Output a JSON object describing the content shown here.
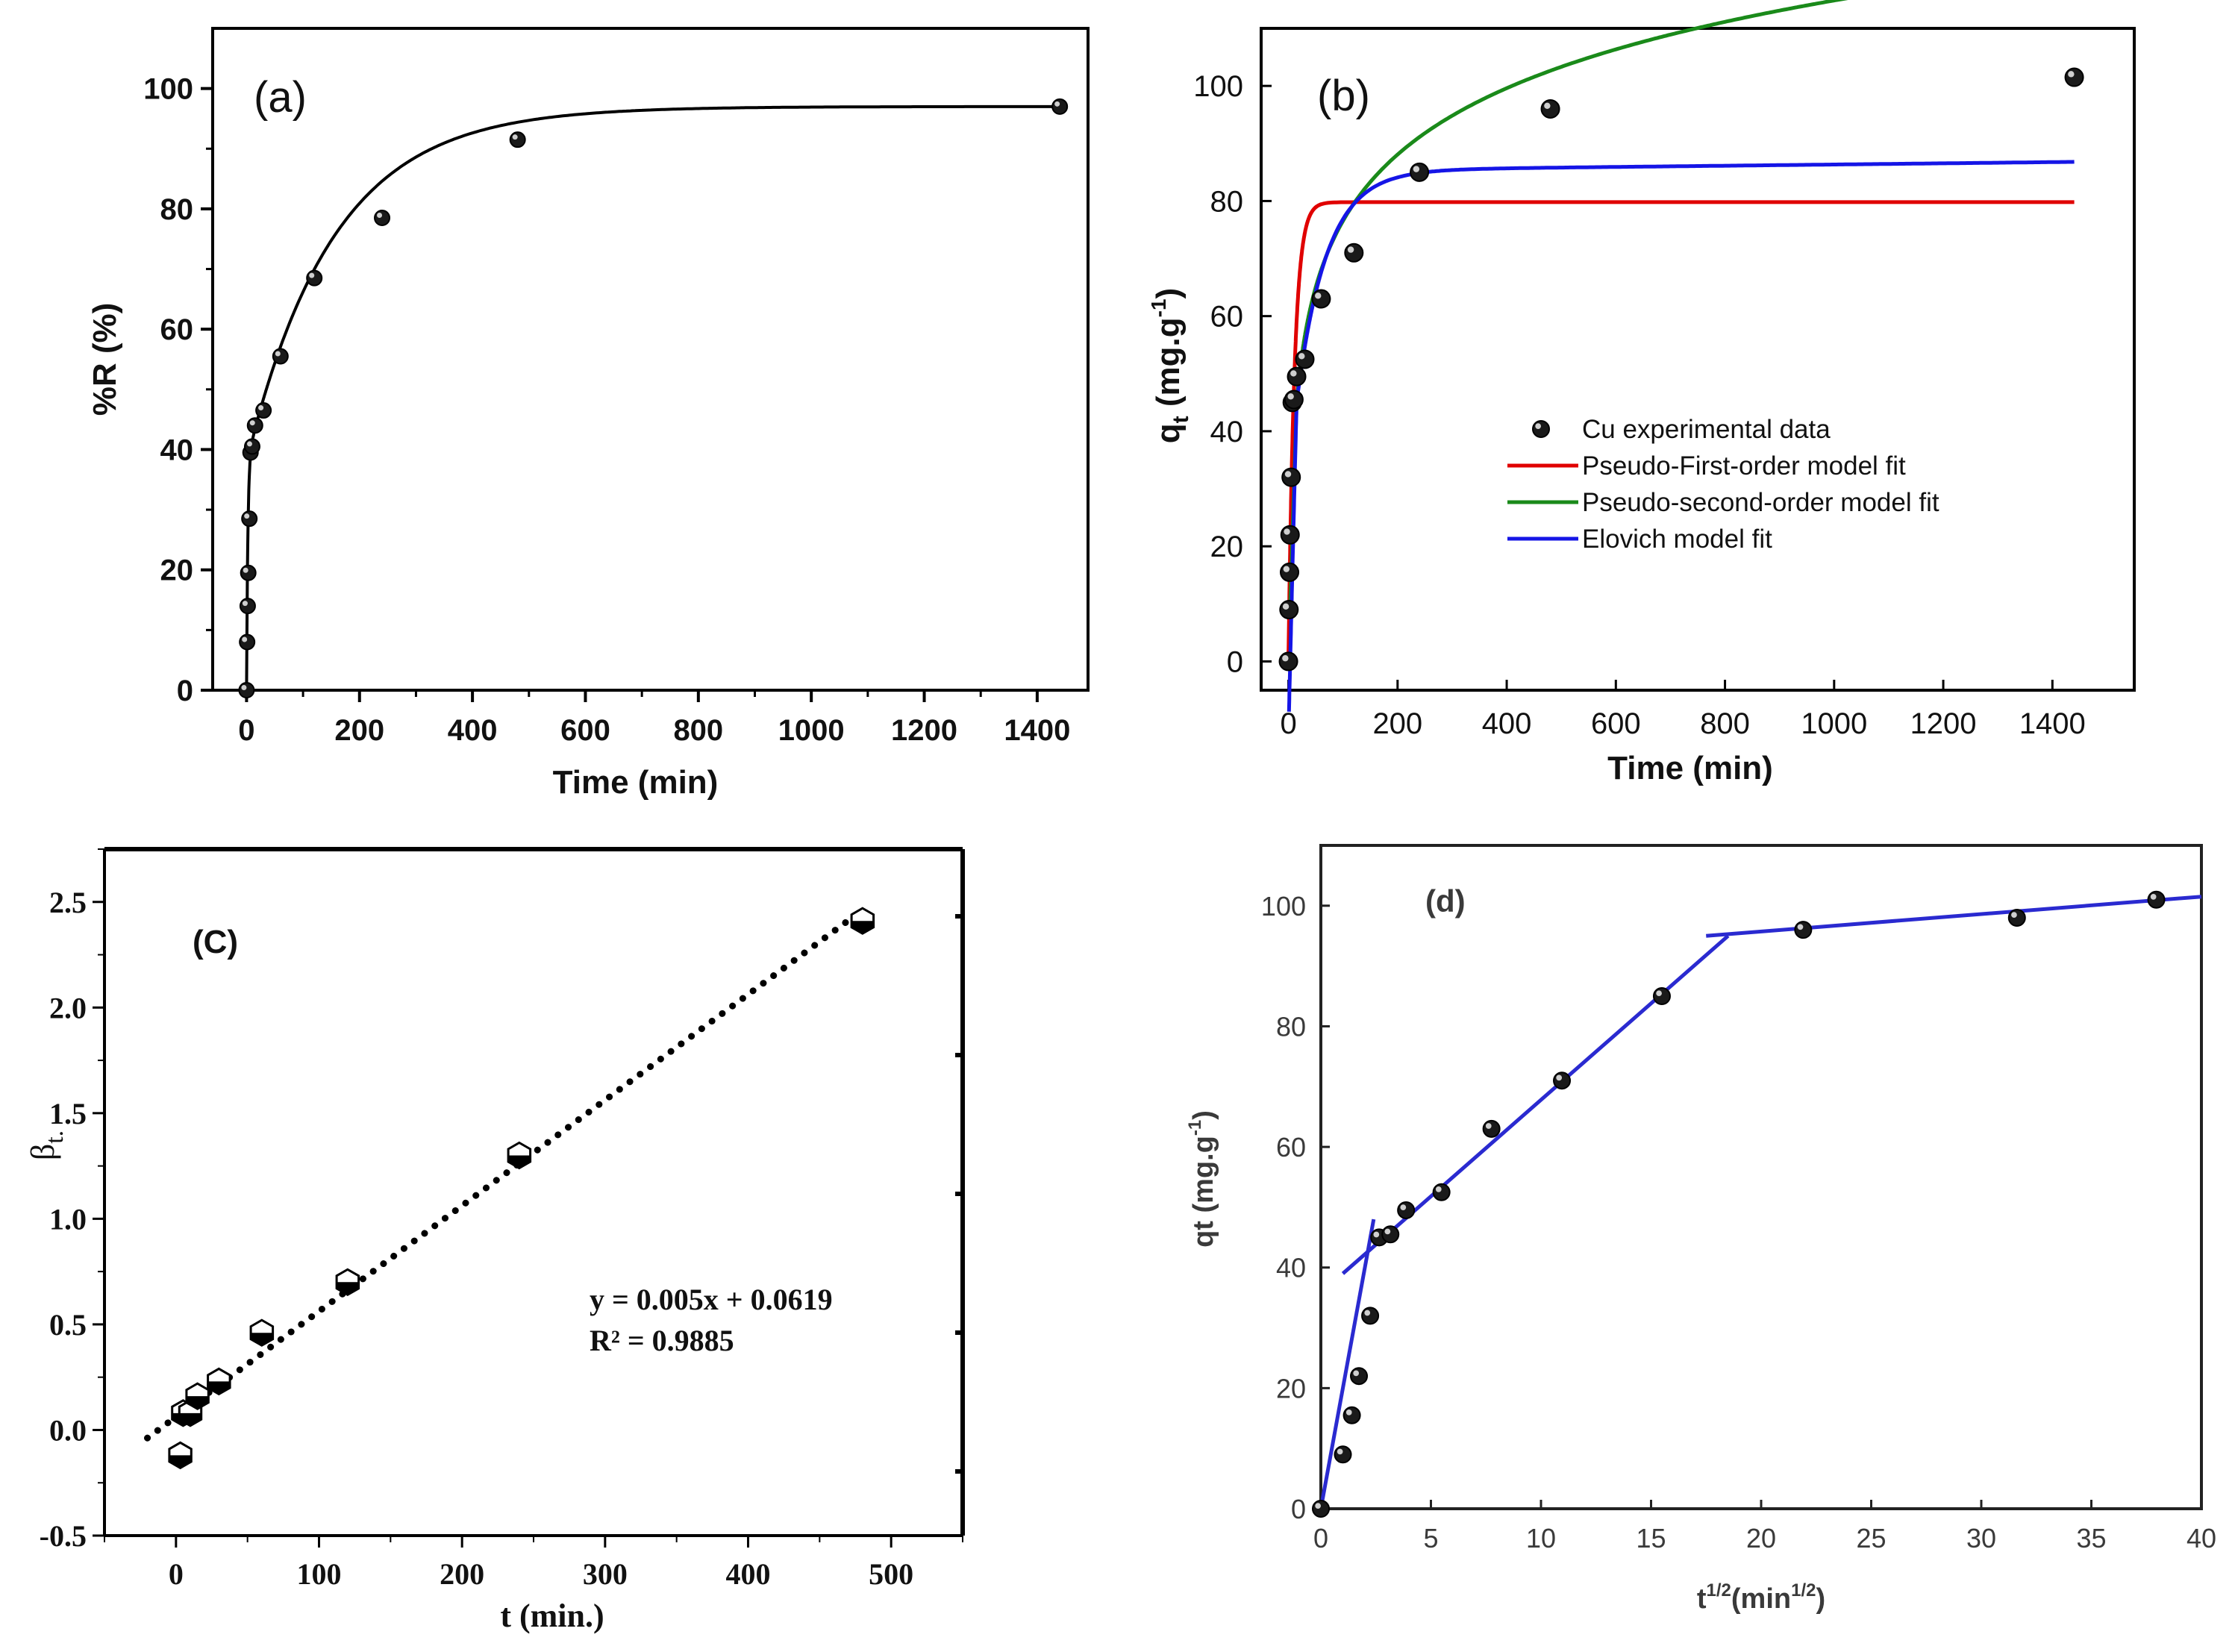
{
  "chart_data": [
    {
      "panel": "(a)",
      "type": "scatter",
      "title": "",
      "xlabel": "Time (min)",
      "ylabel": "%R (%)",
      "xlim": [
        -60,
        1490
      ],
      "ylim": [
        0,
        110
      ],
      "xticks": [
        0,
        200,
        400,
        600,
        800,
        1000,
        1200,
        1400
      ],
      "yticks": [
        0,
        20,
        40,
        60,
        80,
        100
      ],
      "series": [
        {
          "name": "experimental",
          "x": [
            0,
            1,
            2,
            3,
            5,
            7,
            10,
            15,
            30,
            60,
            120,
            240,
            480,
            1440
          ],
          "y": [
            0,
            8,
            14,
            19.5,
            28.5,
            39.5,
            40.5,
            44,
            46.5,
            55.5,
            68.5,
            78.5,
            91.5,
            97
          ]
        },
        {
          "name": "fit",
          "style": "line",
          "model": "qe-(qe-y0)exp(-kt)",
          "params": {
            "qe": 97,
            "k": 0.0065,
            "fast_amp": 38,
            "fast_k": 0.45
          }
        }
      ]
    },
    {
      "panel": "(b)",
      "type": "scatter",
      "title": "",
      "xlabel": "Time (min)",
      "ylabel": "q",
      "ylabel_sub": "t",
      "ylabel_unit": " (mg.g",
      "ylabel_sup": "-1",
      "ylabel_close": ")",
      "xlim": [
        -50,
        1550
      ],
      "ylim": [
        -5,
        110
      ],
      "xticks": [
        0,
        200,
        400,
        600,
        800,
        1000,
        1200,
        1400
      ],
      "yticks": [
        0,
        20,
        40,
        60,
        80,
        100
      ],
      "series": [
        {
          "name": "Cu experimental data",
          "x": [
            0,
            1,
            2,
            3,
            5,
            7,
            10,
            15,
            30,
            60,
            120,
            240,
            480,
            1440
          ],
          "y": [
            0,
            9,
            15.5,
            22,
            32,
            45,
            45.5,
            49.5,
            52.5,
            63,
            71,
            85,
            96,
            101.5
          ],
          "color": "#111111"
        },
        {
          "name": "Pseudo-First-order model fit",
          "color": "#e00000",
          "model": "qe*(1-exp(-k1*t))",
          "params": {
            "qe": 79.8,
            "k1": 0.09
          }
        },
        {
          "name": "Pseudo-second-order model fit",
          "color": "#1a8a1a",
          "model": "shifted-logarithmic",
          "params": {
            "t_from": 15
          }
        },
        {
          "name": "Elovich model fit",
          "color": "#1515e6",
          "model": "saturating",
          "params": {
            "qe": 86.8
          }
        }
      ],
      "legend_position": "center-right"
    },
    {
      "panel": "(C)",
      "type": "scatter",
      "title": "",
      "xlabel": "t (min.)",
      "ylabel": "β",
      "ylabel_sub": "t.",
      "xlim": [
        -50,
        550
      ],
      "ylim": [
        -0.5,
        2.75
      ],
      "xticks": [
        0,
        100,
        200,
        300,
        400,
        500
      ],
      "yticks": [
        -0.5,
        0.0,
        0.5,
        1.0,
        1.5,
        2.0,
        2.5
      ],
      "yticklabels": [
        "-0.5",
        "0.0",
        "0.5",
        "1.0",
        "1.5",
        "2.0",
        "2.5"
      ],
      "series": [
        {
          "name": "βt",
          "x": [
            3,
            5,
            10,
            15,
            30,
            60,
            120,
            240,
            480
          ],
          "y": [
            -0.12,
            0.08,
            0.08,
            0.16,
            0.23,
            0.46,
            0.7,
            1.3,
            2.41
          ]
        },
        {
          "name": "linear fit",
          "style": "dotted",
          "x": [
            -20,
            480
          ],
          "y": [
            -0.0381,
            2.4619
          ]
        }
      ],
      "annotations": [
        "y = 0.005x + 0.0619",
        "R² = 0.9885"
      ]
    },
    {
      "panel": "(d)",
      "type": "scatter",
      "title": "",
      "xlabel": "t",
      "xlabel_sup": "1/2",
      "xlabel_unit": "(min",
      "xlabel_unit_sup": "1/2",
      "xlabel_close": ")",
      "ylabel": "qt (mg.g",
      "ylabel_sup": "-1",
      "ylabel_close": ")",
      "xlim": [
        0,
        40
      ],
      "ylim": [
        0,
        110
      ],
      "xticks": [
        0,
        5,
        10,
        15,
        20,
        25,
        30,
        35,
        40
      ],
      "yticks": [
        0,
        20,
        40,
        60,
        80,
        100
      ],
      "series": [
        {
          "name": "experimental",
          "x": [
            0,
            1,
            1.41,
            1.73,
            2.24,
            2.65,
            3.16,
            3.87,
            5.48,
            7.75,
            10.95,
            15.49,
            21.91,
            31.62,
            37.95
          ],
          "y": [
            0,
            9,
            15.5,
            22,
            32,
            45,
            45.5,
            49.5,
            52.5,
            63,
            71,
            85,
            96,
            98,
            101
          ],
          "color": "#111111"
        },
        {
          "name": "stage 1",
          "color": "#2a2ad0",
          "x": [
            0,
            2.4
          ],
          "y": [
            0,
            48
          ]
        },
        {
          "name": "stage 2",
          "color": "#2a2ad0",
          "x": [
            1,
            18.5
          ],
          "y": [
            39,
            95
          ]
        },
        {
          "name": "stage 3",
          "color": "#2a2ad0",
          "x": [
            17.5,
            40
          ],
          "y": [
            95,
            101.5
          ]
        }
      ]
    }
  ]
}
